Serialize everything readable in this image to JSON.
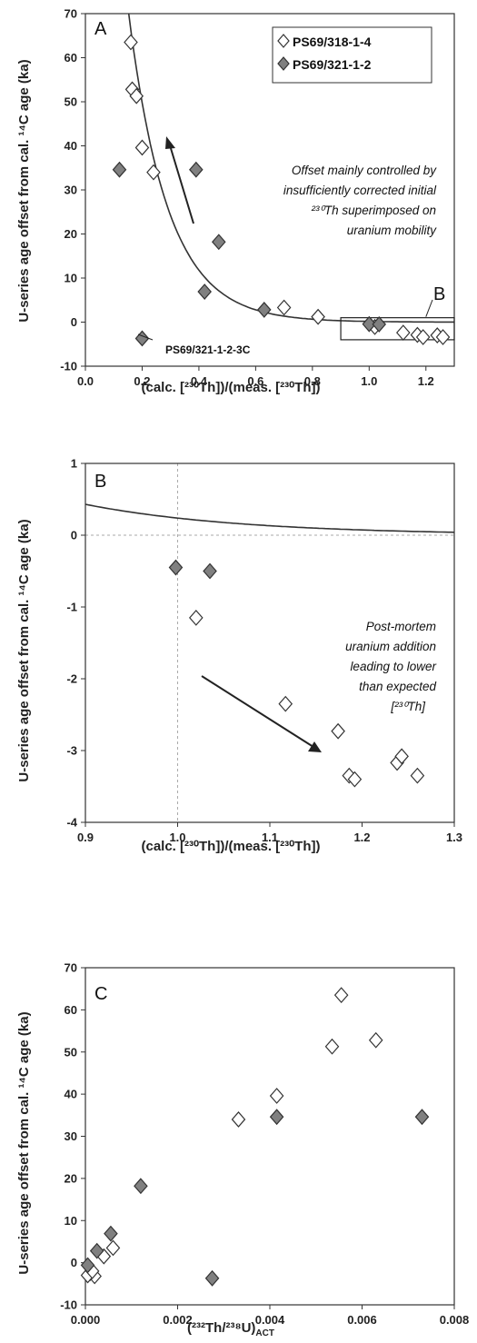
{
  "colors": {
    "open_marker": "#ffffff",
    "filled_marker": "#808080",
    "marker_stroke": "#333333",
    "curve": "#333333",
    "grid_dash": "#aaaaaa"
  },
  "chart_data": [
    {
      "id": "A",
      "type": "scatter",
      "panel_letter": "A",
      "xlabel": "(calc. [²³⁰Th])/(meas. [²³⁰Th])",
      "ylabel": "U-series age offset from cal. ¹⁴C age (ka)",
      "xlim": [
        0.0,
        1.3
      ],
      "ylim": [
        -10,
        70
      ],
      "xticks": [
        "0.0",
        "0.2",
        "0.4",
        "0.6",
        "0.8",
        "1.0",
        "1.2"
      ],
      "yticks": [
        "-10",
        "0",
        "10",
        "20",
        "30",
        "40",
        "50",
        "60",
        "70"
      ],
      "legend": {
        "position": "top-right",
        "entries": [
          "PS69/318-1-4",
          "PS69/321-1-2"
        ]
      },
      "series": [
        {
          "name": "PS69/318-1-4",
          "marker": "open-diamond",
          "x": [
            0.16,
            0.165,
            0.18,
            0.2,
            0.24,
            0.7,
            0.82,
            1.02,
            1.12,
            1.17,
            1.19,
            1.24,
            1.26
          ],
          "y": [
            63.5,
            52.8,
            51.3,
            39.6,
            34.0,
            3.3,
            1.2,
            -1.1,
            -2.4,
            -2.9,
            -3.4,
            -3.0,
            -3.4
          ]
        },
        {
          "name": "PS69/321-1-2",
          "marker": "filled-diamond",
          "x": [
            0.12,
            0.2,
            0.39,
            0.42,
            0.47,
            0.63,
            1.0,
            1.035
          ],
          "y": [
            34.6,
            -3.7,
            34.6,
            6.9,
            18.2,
            2.8,
            -0.45,
            -0.5
          ]
        }
      ],
      "annotations": {
        "offset_text": [
          "Offset mainly controlled by",
          "insufficiently corrected initial",
          "²³⁰Th superimposed on",
          "uranium mobility"
        ],
        "point_label": "PS69/321-1-2-3C",
        "box_label": "B"
      }
    },
    {
      "id": "B",
      "type": "scatter",
      "panel_letter": "B",
      "xlabel": "(calc. [²³⁰Th])/(meas. [²³⁰Th])",
      "ylabel": "U-series age offset from cal. ¹⁴C age (ka)",
      "xlim": [
        0.9,
        1.3
      ],
      "ylim": [
        -4,
        1
      ],
      "xticks": [
        "0.9",
        "1.0",
        "1.1",
        "1.2",
        "1.3"
      ],
      "yticks": [
        "-4",
        "-3",
        "-2",
        "-1",
        "0",
        "1"
      ],
      "series": [
        {
          "name": "PS69/318-1-4",
          "marker": "open-diamond",
          "x": [
            1.02,
            1.117,
            1.174,
            1.186,
            1.192,
            1.238,
            1.243,
            1.26
          ],
          "y": [
            -1.15,
            -2.35,
            -2.73,
            -3.35,
            -3.4,
            -3.17,
            -3.08,
            -3.35
          ]
        },
        {
          "name": "PS69/321-1-2",
          "marker": "filled-diamond",
          "x": [
            0.998,
            1.035
          ],
          "y": [
            -0.45,
            -0.5
          ]
        }
      ],
      "annotations": {
        "mortem_text": [
          "Post-mortem",
          "uranium addition",
          "leading to lower",
          "than expected",
          "[²³⁰Th]"
        ]
      }
    },
    {
      "id": "C",
      "type": "scatter",
      "panel_letter": "C",
      "xlabel": "(²³²Th/²³⁸U)ACT",
      "ylabel": "U-series age offset from cal. ¹⁴C age (ka)",
      "xlim": [
        0.0,
        0.008
      ],
      "ylim": [
        -10,
        70
      ],
      "xticks": [
        "0.000",
        "0.002",
        "0.004",
        "0.006",
        "0.008"
      ],
      "yticks": [
        "-10",
        "0",
        "10",
        "20",
        "30",
        "40",
        "50",
        "60",
        "70"
      ],
      "series": [
        {
          "name": "PS69/318-1-4",
          "marker": "open-diamond",
          "x": [
            0.00555,
            0.0063,
            0.00535,
            0.00415,
            0.00332,
            0.0004,
            0.0006,
            0.0002,
            0.0001,
            5e-05,
            0.00015
          ],
          "y": [
            63.5,
            52.8,
            51.3,
            39.6,
            34.0,
            1.5,
            3.5,
            -3.2,
            -2.5,
            -3.0,
            -2.0
          ]
        },
        {
          "name": "PS69/321-1-2",
          "marker": "filled-diamond",
          "x": [
            0.0073,
            0.00415,
            0.0012,
            0.00055,
            0.00025,
            5e-05,
            0.00275
          ],
          "y": [
            34.6,
            34.6,
            18.2,
            6.9,
            2.8,
            -0.6,
            -3.7
          ]
        }
      ]
    }
  ]
}
